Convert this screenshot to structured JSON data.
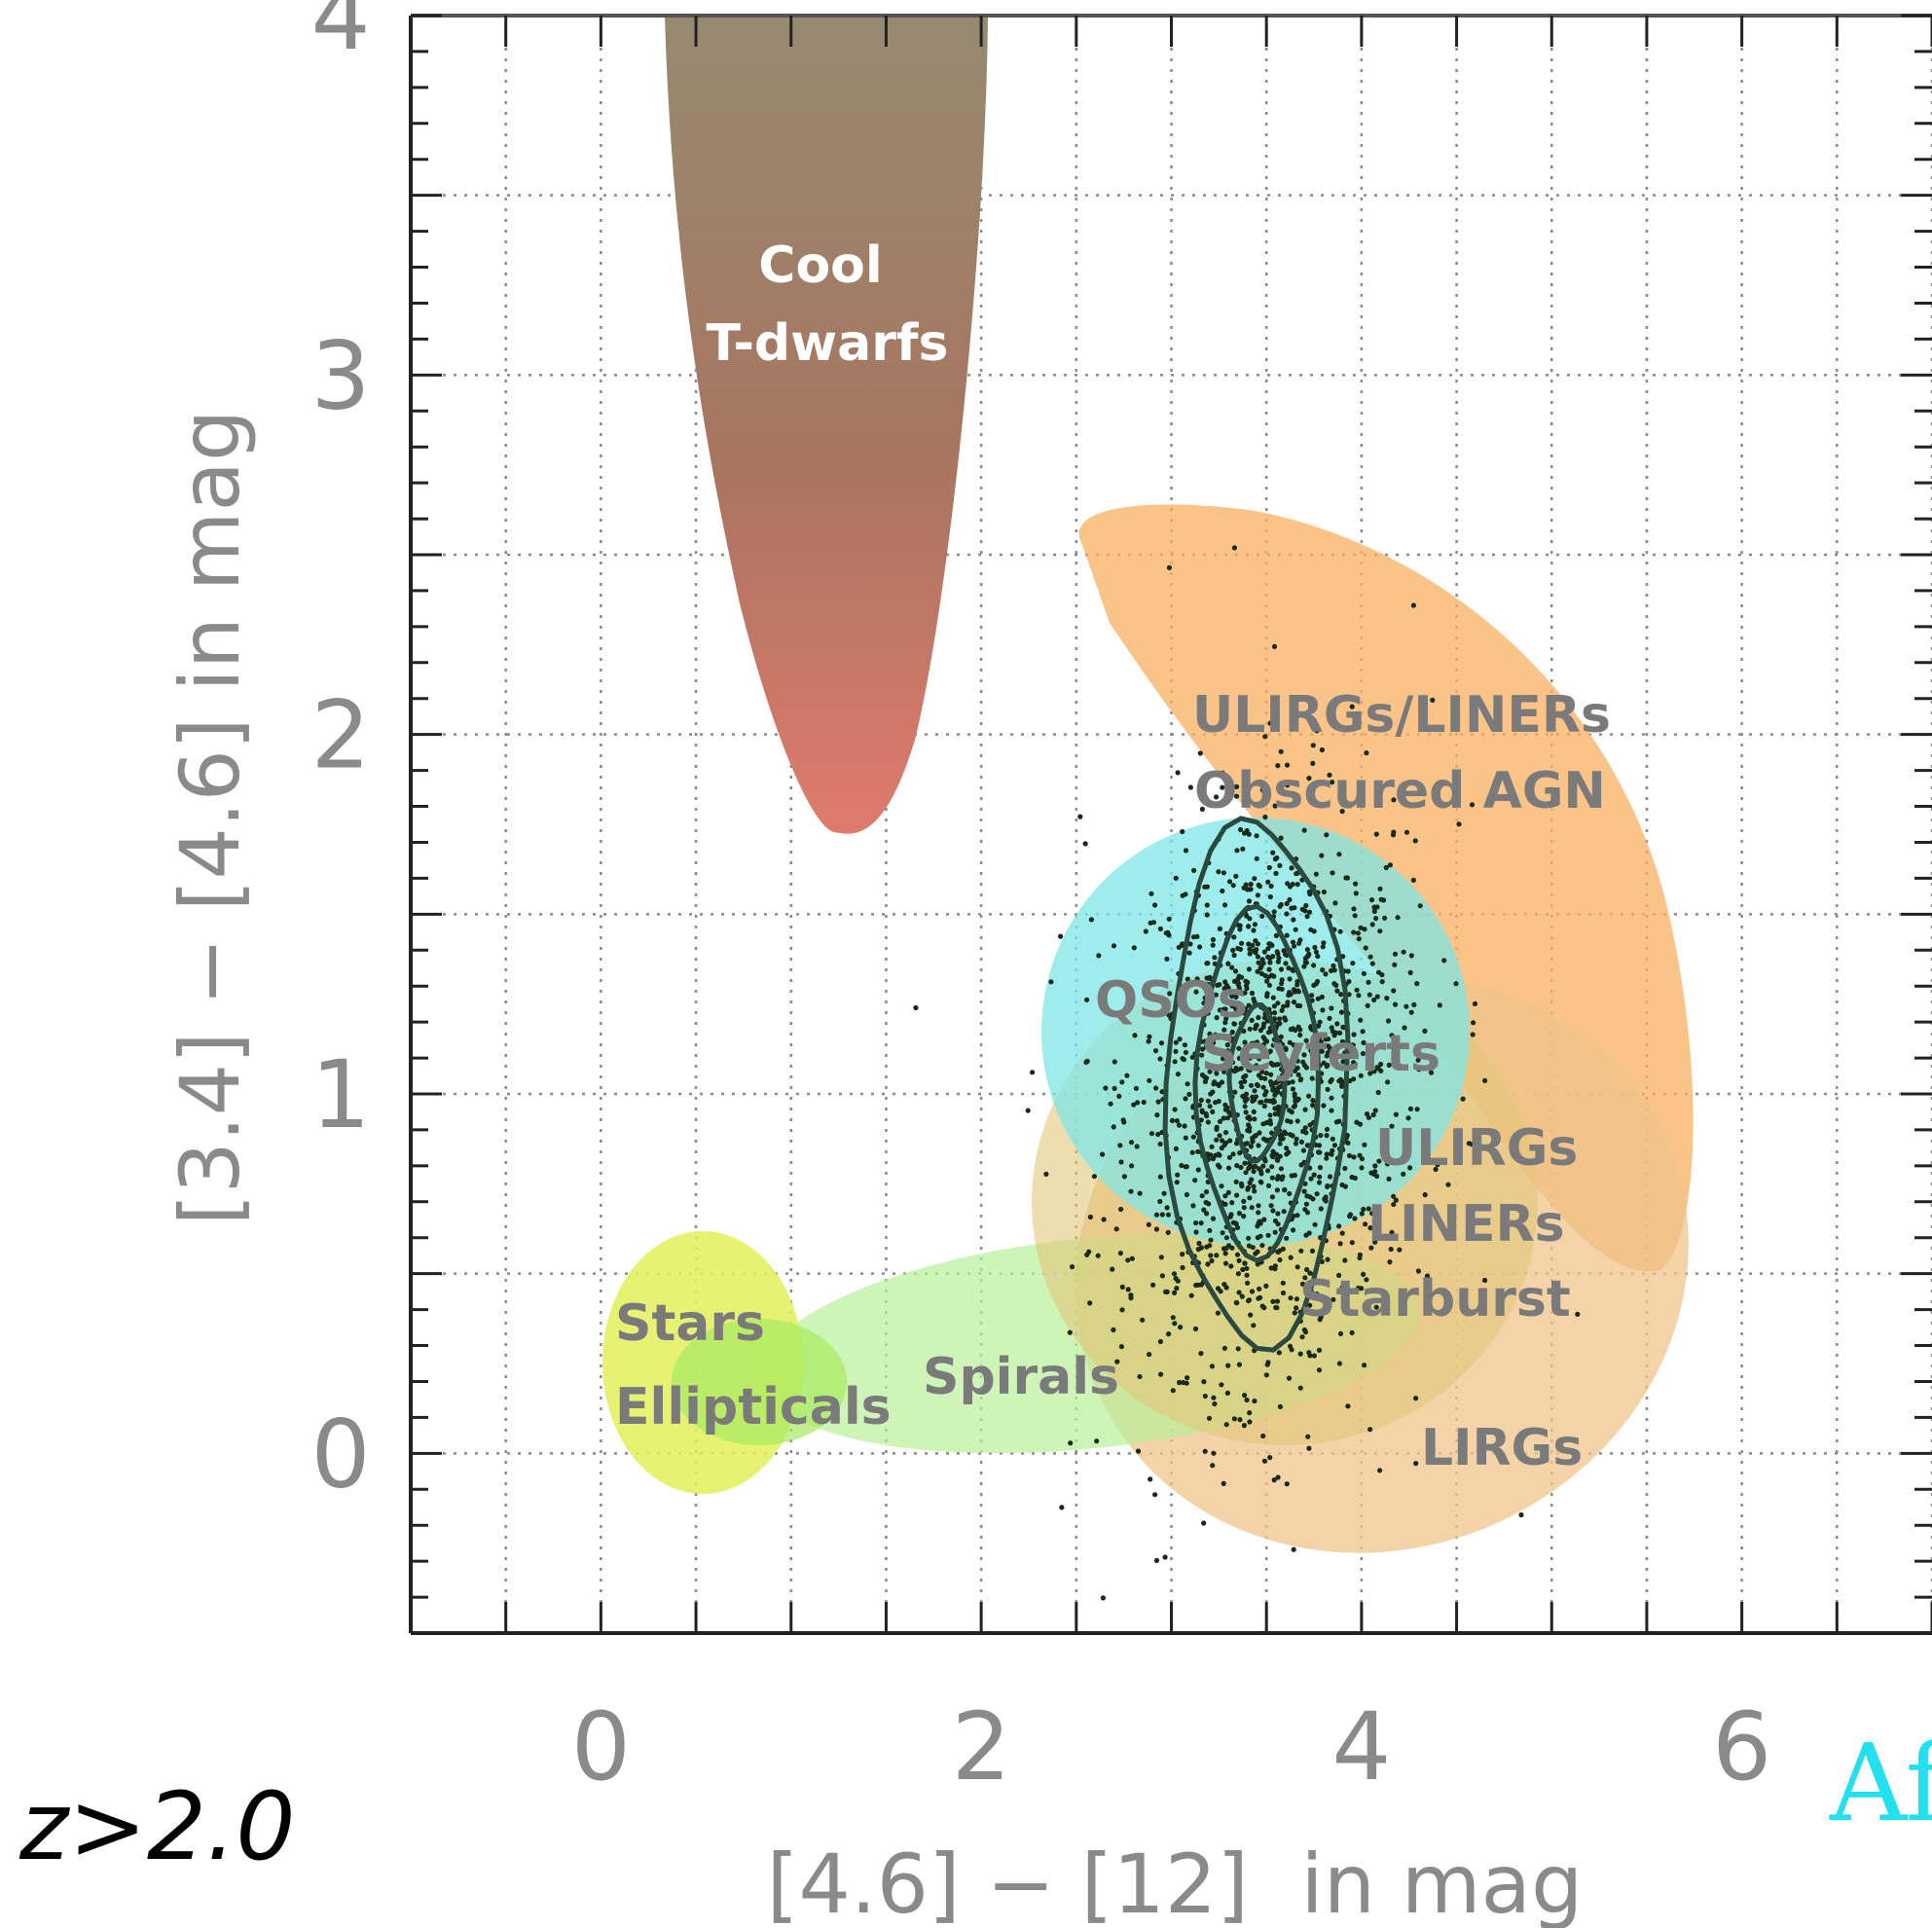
{
  "chart_data": {
    "type": "scatter",
    "xlabel": "[4.6] − [12]  in mag",
    "ylabel": "[3.4] − [4.6] in mag",
    "xlim": [
      -1,
      7
    ],
    "ylim": [
      -0.5,
      4.0
    ],
    "x_ticks": [
      0,
      2,
      4,
      6
    ],
    "y_ticks": [
      0,
      1,
      2,
      3,
      4
    ],
    "grid": true,
    "regions": [
      {
        "name": "cool-tdwarfs",
        "labels": [
          "Cool",
          "T-dwarfs"
        ],
        "color": "#9b7d6a",
        "x_range": [
          0.35,
          2.0
        ],
        "y_range": [
          1.75,
          4.0
        ]
      },
      {
        "name": "ulirgs-liners-obscured-agn",
        "labels": [
          "ULIRGs/LINERs",
          "Obscured AGN"
        ],
        "color": "#f8b060"
      },
      {
        "name": "qsos-seyferts",
        "labels": [
          "QSOs",
          "Seyferts"
        ],
        "color": "#7fe6e6"
      },
      {
        "name": "ulirgs-liners-starburst",
        "labels": [
          "ULIRGs",
          "LINERs",
          "Starburst"
        ],
        "color": "#e3c77a"
      },
      {
        "name": "lirgs",
        "labels": [
          "LIRGs"
        ],
        "color": "#efc48a"
      },
      {
        "name": "spirals",
        "labels": [
          "Spirals"
        ],
        "color": "#b9ef9a"
      },
      {
        "name": "stars-ellipticals",
        "labels": [
          "Stars",
          "Ellipticals"
        ],
        "color": "#e3f05a"
      }
    ],
    "point_cloud": {
      "center_x": 3.5,
      "center_y": 1.0,
      "color": "#1a2a1a"
    },
    "contours": [
      {
        "center_x": 3.45,
        "center_y": 1.03
      },
      {
        "center_x": 3.45,
        "center_y": 1.03
      },
      {
        "center_x": 3.45,
        "center_y": 1.03
      }
    ]
  },
  "annotations": {
    "redshift": "z>2.0",
    "watermark": "Af"
  }
}
